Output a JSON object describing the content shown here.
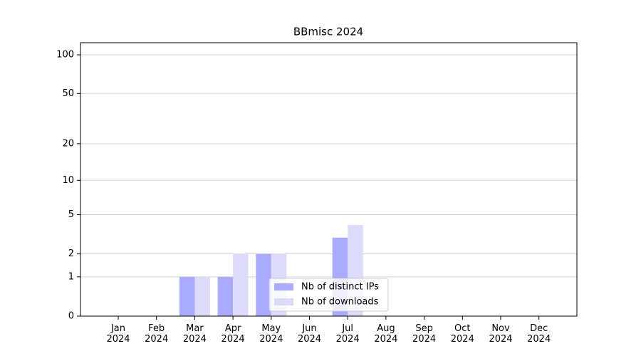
{
  "chart_data": {
    "type": "bar",
    "title": "BBmisc 2024",
    "categories": [
      "Jan\n2024",
      "Feb\n2024",
      "Mar\n2024",
      "Apr\n2024",
      "May\n2024",
      "Jun\n2024",
      "Jul\n2024",
      "Aug\n2024",
      "Sep\n2024",
      "Oct\n2024",
      "Nov\n2024",
      "Dec\n2024"
    ],
    "series": [
      {
        "name": "Nb of distinct IPs",
        "color": "#aaaaff",
        "values": [
          0,
          0,
          1,
          1,
          2,
          0,
          3,
          0,
          0,
          0,
          0,
          0
        ]
      },
      {
        "name": "Nb of downloads",
        "color": "#dcdcfa",
        "values": [
          0,
          0,
          1,
          2,
          2,
          0,
          4,
          0,
          0,
          0,
          0,
          0
        ]
      }
    ],
    "yscale": "log1p",
    "ylim": [
      0,
      124
    ],
    "yticks": [
      0,
      1,
      2,
      5,
      10,
      20,
      50,
      100
    ],
    "grid": true,
    "legend": "lower center"
  }
}
